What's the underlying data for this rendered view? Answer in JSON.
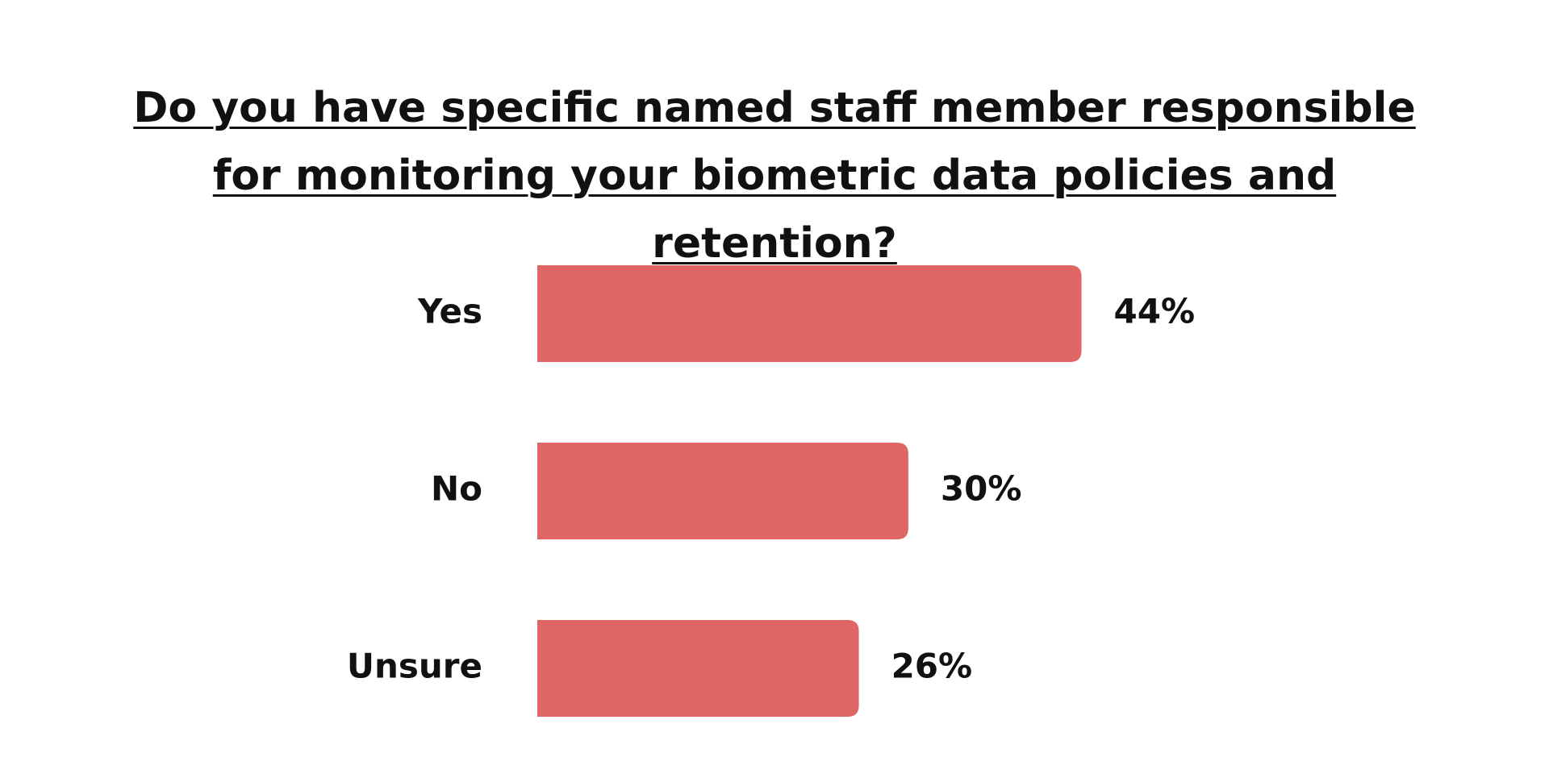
{
  "chart_data": {
    "type": "bar",
    "orientation": "horizontal",
    "title": "Do you have specific named staff member responsible for monitoring your biometric data policies and retention?",
    "categories": [
      "Yes",
      "No",
      "Unsure"
    ],
    "values": [
      44,
      30,
      26
    ],
    "value_labels": [
      "44%",
      "30%",
      "26%"
    ],
    "color": "#e06666"
  }
}
